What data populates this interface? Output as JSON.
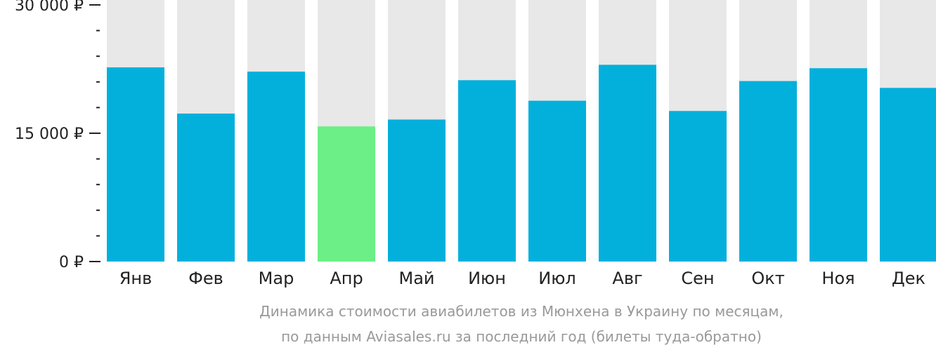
{
  "chart_data": {
    "type": "bar",
    "categories": [
      "Янв",
      "Фев",
      "Мар",
      "Апр",
      "Май",
      "Июн",
      "Июл",
      "Авг",
      "Сен",
      "Окт",
      "Ноя",
      "Дек"
    ],
    "values": [
      22700,
      17300,
      22200,
      15800,
      16600,
      21200,
      18800,
      23000,
      17600,
      21100,
      22600,
      20300
    ],
    "ylim": [
      0,
      30000
    ],
    "yticks": [
      {
        "value": 0,
        "label": "0 ₽"
      },
      {
        "value": 15000,
        "label": "15 000 ₽"
      },
      {
        "value": 30000,
        "label": "30 000 ₽"
      }
    ],
    "minor_tick_step": 3000,
    "highlight_index": 3,
    "caption": [
      "Динамика стоимости авиабилетов из Мюнхена в Украину по месяцам,",
      "по данным Aviasales.ru за последний год (билеты туда-обратно)"
    ],
    "colors": {
      "bar": "#03b0dc",
      "highlight": "#6bef86",
      "background_bar": "#e8e8e8",
      "axis": "#222222",
      "caption": "#999999"
    }
  }
}
